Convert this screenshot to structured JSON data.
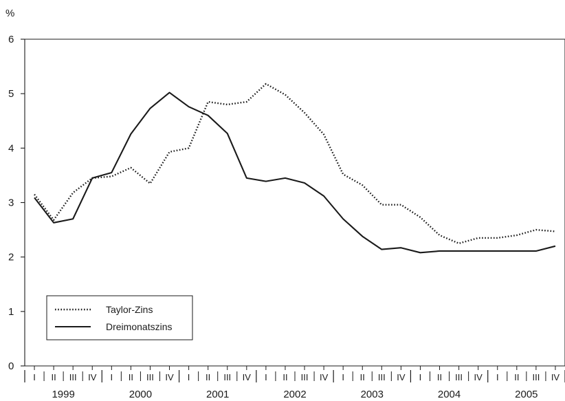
{
  "chart_data": {
    "type": "line",
    "unit_label": "%",
    "ylim": [
      0,
      6
    ],
    "y_ticks": [
      "0",
      "1",
      "2",
      "3",
      "4",
      "5",
      "6"
    ],
    "quarters": [
      "I",
      "II",
      "III",
      "IV"
    ],
    "years": [
      "1999",
      "2000",
      "2001",
      "2002",
      "2003",
      "2004",
      "2005"
    ],
    "grid": false,
    "legend_position": "bottom-left",
    "series": [
      {
        "name": "Taylor-Zins",
        "style": "dotted",
        "color": "#1a1a1a",
        "values": [
          3.15,
          2.68,
          3.18,
          3.45,
          3.48,
          3.64,
          3.35,
          3.93,
          4.0,
          4.85,
          4.8,
          4.85,
          5.18,
          4.98,
          4.65,
          4.25,
          3.52,
          3.32,
          2.96,
          2.96,
          2.73,
          2.4,
          2.25,
          2.35,
          2.35,
          2.4,
          2.5,
          2.47
        ]
      },
      {
        "name": "Dreimonatszins",
        "style": "solid",
        "color": "#1a1a1a",
        "values": [
          3.09,
          2.63,
          2.7,
          3.45,
          3.55,
          4.26,
          4.73,
          5.02,
          4.76,
          4.6,
          4.27,
          3.45,
          3.39,
          3.45,
          3.36,
          3.12,
          2.7,
          2.38,
          2.14,
          2.17,
          2.08,
          2.11,
          2.11,
          2.11,
          2.11,
          2.11,
          2.11,
          2.2
        ]
      }
    ]
  }
}
